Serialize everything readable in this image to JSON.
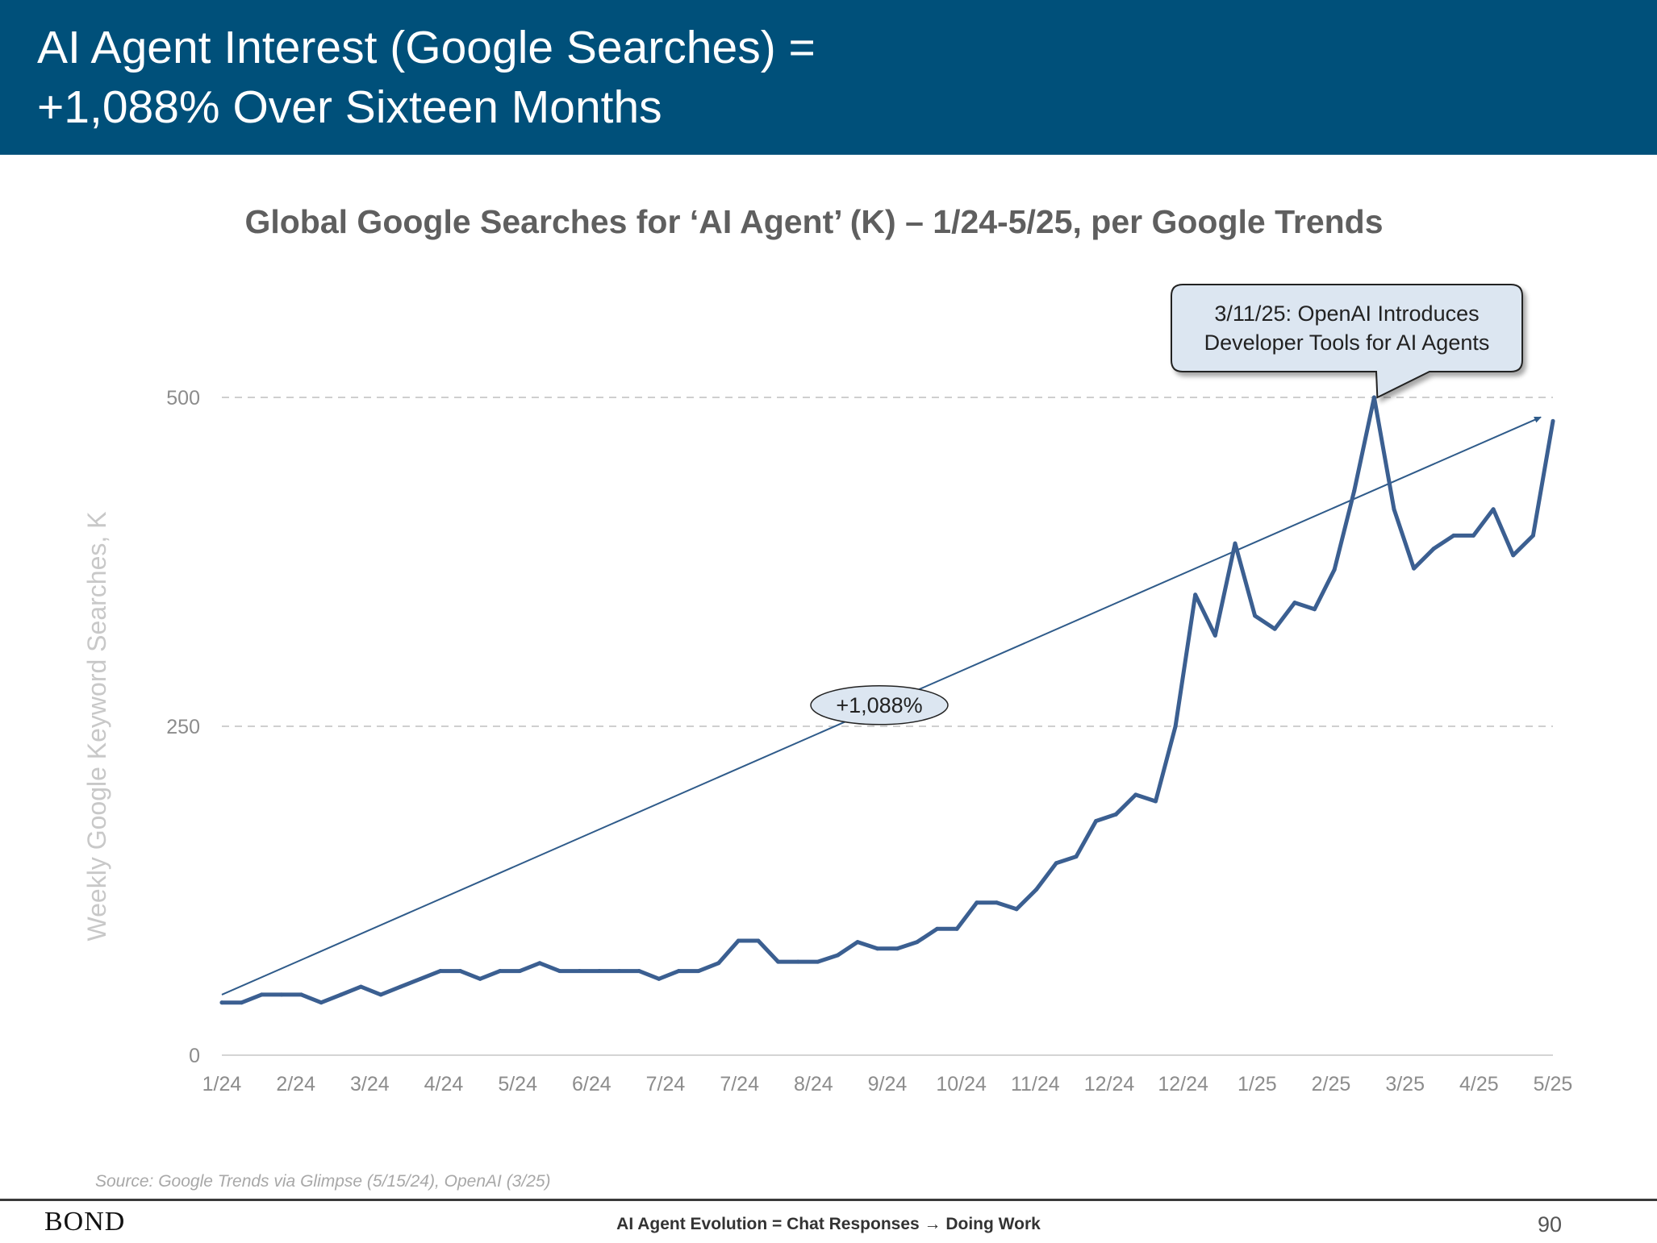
{
  "slide": {
    "title_line1": "AI Agent Interest (Google Searches) =",
    "title_line2": "+1,088% Over Sixteen Months",
    "source": "Source: Google Trends via Glimpse (5/15/24), OpenAI (3/25)",
    "logo": "BOND",
    "footer": "AI Agent Evolution = Chat Responses → Doing Work",
    "page_number": "90"
  },
  "colors": {
    "header_bg": "#00507a",
    "series_line": "#3b5f91",
    "trend_line": "#2f5b8a",
    "callout_fill": "#dce6f1"
  },
  "chart_data": {
    "type": "line",
    "title": "Global Google Searches for ‘AI Agent’ (K) – 1/24-5/25, per Google Trends",
    "ylabel": "Weekly Google Keyword Searches, K",
    "xlabel": "",
    "ylim": [
      0,
      500
    ],
    "yticks": [
      0,
      250,
      500
    ],
    "grid": "horizontal dashed",
    "x_tick_labels": [
      "1/24",
      "2/24",
      "3/24",
      "4/24",
      "5/24",
      "6/24",
      "7/24",
      "7/24",
      "8/24",
      "9/24",
      "10/24",
      "11/24",
      "12/24",
      "12/24",
      "1/25",
      "2/25",
      "3/25",
      "4/25",
      "5/25"
    ],
    "series": [
      {
        "values": [
          40,
          40,
          46,
          46,
          46,
          40,
          46,
          52,
          46,
          52,
          58,
          64,
          64,
          58,
          64,
          64,
          70,
          64,
          64,
          64,
          64,
          64,
          58,
          64,
          64,
          70,
          87,
          87,
          71,
          71,
          71,
          76,
          86,
          81,
          81,
          86,
          96,
          96,
          116,
          116,
          111,
          126,
          146,
          151,
          178,
          183,
          198,
          193,
          250,
          350,
          319,
          389,
          334,
          324,
          344,
          339,
          369,
          429,
          500,
          415,
          370,
          385,
          395,
          395,
          415,
          380,
          395,
          482
        ]
      }
    ],
    "trend": {
      "label": "+1,088%",
      "start_value": 46,
      "end_value": 485
    },
    "annotation": {
      "line1": "3/11/25: OpenAI Introduces",
      "line2": "Developer Tools for AI Agents"
    }
  }
}
